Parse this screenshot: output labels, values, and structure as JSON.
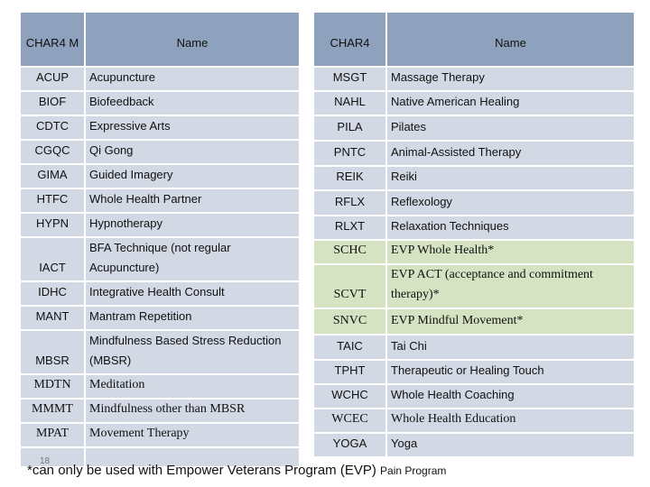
{
  "left_table": {
    "header": [
      "CHAR4 M",
      "Name"
    ],
    "rows": [
      [
        "ACUP",
        "Acupuncture"
      ],
      [
        "BIOF",
        "Biofeedback"
      ],
      [
        "CDTC",
        "Expressive Arts"
      ],
      [
        "CGQC",
        "Qi Gong"
      ],
      [
        "GIMA",
        "Guided Imagery"
      ],
      [
        "HTFC",
        "Whole Health Partner"
      ],
      [
        "HYPN",
        "Hypnotherapy"
      ],
      [
        "IACT",
        "BFA Technique (not regular Acupuncture)"
      ],
      [
        "IDHC",
        "Integrative Health Consult"
      ],
      [
        "MANT",
        "Mantram Repetition"
      ],
      [
        "MBSR",
        "Mindfulness Based Stress Reduction (MBSR)"
      ],
      [
        "MDTN",
        "Meditation"
      ],
      [
        "MMMT",
        "Mindfulness other than MBSR"
      ],
      [
        "MPAT",
        "Movement Therapy"
      ]
    ]
  },
  "right_table": {
    "header": [
      "CHAR4",
      "Name"
    ],
    "rows": [
      [
        "MSGT",
        "Massage Therapy"
      ],
      [
        "NAHL",
        "Native American Healing"
      ],
      [
        "PILA",
        "Pilates"
      ],
      [
        "PNTC",
        "Animal-Assisted Therapy"
      ],
      [
        "REIK",
        "Reiki"
      ],
      [
        "RFLX",
        "Reflexology"
      ],
      [
        "RLXT",
        "Relaxation Techniques"
      ],
      [
        "SCHC",
        "EVP Whole Health*"
      ],
      [
        "SCVT",
        "EVP ACT (acceptance and commitment therapy)*"
      ],
      [
        "SNVC",
        "EVP Mindful Movement*"
      ],
      [
        "TAIC",
        "Tai Chi"
      ],
      [
        "TPHT",
        "Therapeutic or Healing Touch"
      ],
      [
        "WCHC",
        "Whole Health Coaching"
      ],
      [
        "WCEC",
        "Whole Health Education"
      ],
      [
        "YOGA",
        "Yoga"
      ]
    ]
  },
  "footnote": {
    "text": "*can only be used with Empower Veterans Program (EVP)",
    "small": "Pain Program"
  },
  "slide_number": "18"
}
